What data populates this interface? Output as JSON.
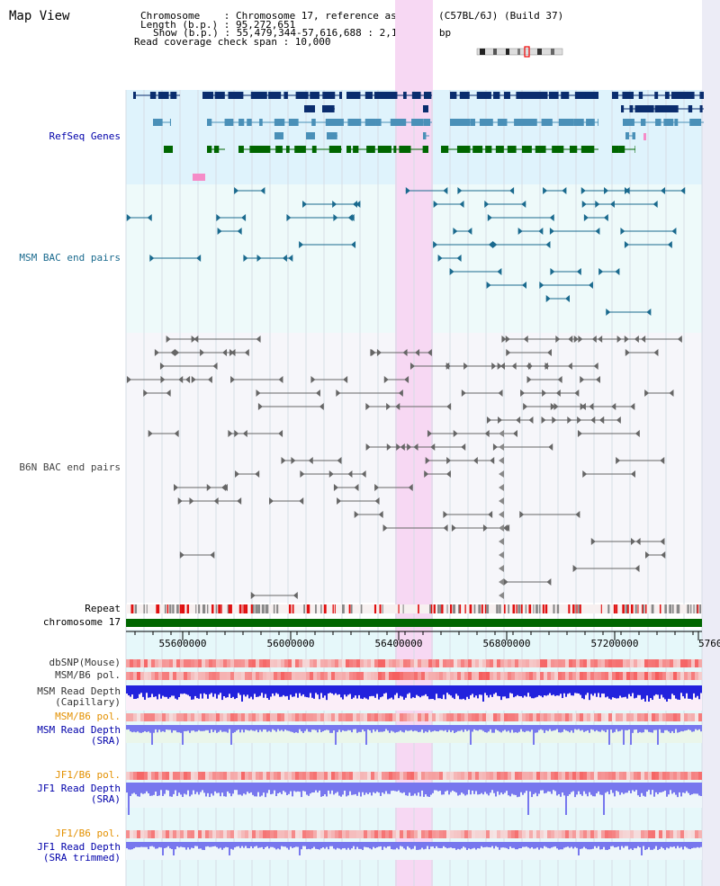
{
  "header": {
    "title": "Map View",
    "chromosome_line": "Chromosome    : Chromosome 17, reference assembly (C57BL/6J) (Build 37)",
    "length_line": "Length (b.p.) : 95,272,651",
    "show_line": "Show (b.p.) : 55,479,344-57,616,688 : 2,137,345 bp",
    "coverage_line": "Read coverage check span : 10,000"
  },
  "tracks": {
    "refseq": "RefSeq Genes",
    "msm_bac": "MSM BAC end pairs",
    "b6n_bac": "B6N BAC end pairs",
    "repeat": "Repeat",
    "chromosome": "chromosome 17",
    "dbsnp": "dbSNP(Mouse)",
    "msm_b6_pol_1": "MSM/B6 pol.",
    "msm_read_depth_cap": "MSM Read Depth\n(Capillary)",
    "msm_b6_pol_2": "MSM/B6 pol.",
    "msm_read_depth_sra": "MSM Read Depth\n(SRA)",
    "jf1_b6_pol_1": "JF1/B6 pol.",
    "jf1_read_depth_sra": "JF1 Read Depth\n(SRA)",
    "jf1_b6_pol_2": "JF1/B6 pol.",
    "jf1_read_depth_trim": "JF1 Read Depth\n(SRA trimmed)"
  },
  "axis": {
    "ticks": [
      "55600000",
      "56000000",
      "56400000",
      "56800000",
      "57200000",
      "5760"
    ]
  },
  "colors": {
    "refseq_bg": "#dff3fc",
    "bac_bg": "#f3fafb",
    "highlight": "#f7d8f3",
    "navy": "#0a2d6e",
    "steel": "#4a90b8",
    "green": "#006600",
    "pink": "#f58cc8",
    "msm_feature": "#1a6a8e",
    "b6n_feature": "#666666",
    "chromosome_bar": "#006600",
    "depth_blue": "#2222dd",
    "depth_lavender": "#7777ee",
    "pol_red": "#e83030",
    "label_blue": "#0000aa",
    "label_orange": "#e39000",
    "label_gray": "#333333"
  }
}
